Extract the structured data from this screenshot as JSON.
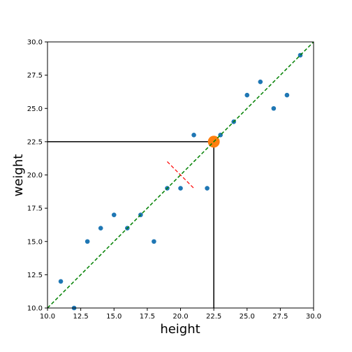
{
  "chart_data": {
    "type": "scatter",
    "xlabel": "height",
    "ylabel": "weight",
    "xlim": [
      10.0,
      30.0
    ],
    "ylim": [
      10.0,
      30.0
    ],
    "x_ticks": [
      "10.0",
      "12.5",
      "15.0",
      "17.5",
      "20.0",
      "22.5",
      "25.0",
      "27.5",
      "30.0"
    ],
    "y_ticks": [
      "10.0",
      "12.5",
      "15.0",
      "17.5",
      "20.0",
      "22.5",
      "25.0",
      "27.5",
      "30.0"
    ],
    "grid": false,
    "points": [
      {
        "x": 11,
        "y": 12
      },
      {
        "x": 12,
        "y": 10
      },
      {
        "x": 13,
        "y": 15
      },
      {
        "x": 14,
        "y": 16
      },
      {
        "x": 15,
        "y": 17
      },
      {
        "x": 16,
        "y": 16
      },
      {
        "x": 17,
        "y": 17
      },
      {
        "x": 18,
        "y": 15
      },
      {
        "x": 19,
        "y": 19
      },
      {
        "x": 20,
        "y": 19
      },
      {
        "x": 21,
        "y": 23
      },
      {
        "x": 22,
        "y": 19
      },
      {
        "x": 23,
        "y": 23
      },
      {
        "x": 24,
        "y": 24
      },
      {
        "x": 25,
        "y": 26
      },
      {
        "x": 26,
        "y": 27
      },
      {
        "x": 27,
        "y": 25
      },
      {
        "x": 28,
        "y": 26
      },
      {
        "x": 29,
        "y": 29
      }
    ],
    "fit_line": {
      "x1": 10.0,
      "y1": 10.0,
      "x2": 30.0,
      "y2": 30.0
    },
    "residual_line": {
      "x1": 19.0,
      "y1": 21.0,
      "x2": 21.0,
      "y2": 19.0
    },
    "highlight_point": {
      "x": 22.5,
      "y": 22.5
    },
    "guide_lines": [
      {
        "x1": 10.0,
        "y1": 22.5,
        "x2": 22.5,
        "y2": 22.5
      },
      {
        "x1": 22.5,
        "y1": 10.0,
        "x2": 22.5,
        "y2": 22.5
      }
    ],
    "colors": {
      "points": "#1f77b4",
      "fit_line": "#008000",
      "residual_line": "#ff0000",
      "highlight": "#ff7f0e",
      "guide": "#000000"
    }
  }
}
